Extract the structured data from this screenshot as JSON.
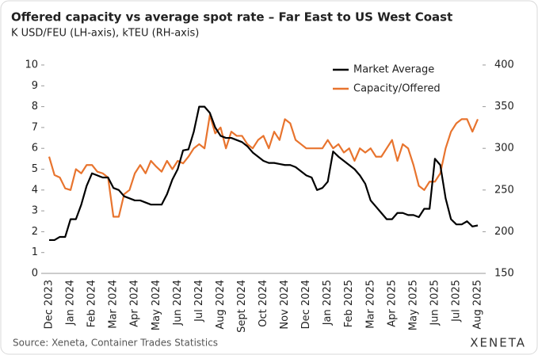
{
  "chart_data": {
    "type": "line",
    "title": "Offered capacity vs average spot rate – Far East to US West Coast",
    "subtitle": "K USD/FEU (LH-axis), kTEU (RH-axis)",
    "categories": [
      "Dec 2023",
      null,
      null,
      null,
      "Jan 2024",
      null,
      null,
      null,
      "Feb 2024",
      null,
      null,
      null,
      "Mar 2024",
      null,
      null,
      null,
      "Apr 2024",
      null,
      null,
      null,
      "May 2024",
      null,
      null,
      null,
      "Jun 2024",
      null,
      null,
      null,
      "Jul 2024",
      null,
      null,
      null,
      "Aug 2024",
      null,
      null,
      null,
      "Sept 2024",
      null,
      null,
      null,
      "Oct 2024",
      null,
      null,
      null,
      "Nov 2024",
      null,
      null,
      null,
      "Dec 2024",
      null,
      null,
      null,
      "Jan 2025",
      null,
      null,
      null,
      "Feb 2025",
      null,
      null,
      null,
      "Mar 2025",
      null,
      null,
      null,
      "Apr 2025",
      null,
      null,
      null,
      "May 2025",
      null,
      null,
      null,
      "Jun 2025",
      null,
      null,
      null,
      "Jul 2025",
      null,
      null,
      null,
      "Aug 2025"
    ],
    "series": [
      {
        "name": "Market Average",
        "color": "#000000",
        "values": [
          1.6,
          1.6,
          1.75,
          1.75,
          2.6,
          2.6,
          3.3,
          4.2,
          4.8,
          4.7,
          4.6,
          4.6,
          4.1,
          4.0,
          3.7,
          3.6,
          3.5,
          3.5,
          3.4,
          3.3,
          3.3,
          3.3,
          3.8,
          4.5,
          5.0,
          5.9,
          5.95,
          6.8,
          8.0,
          8.0,
          7.7,
          7.0,
          6.6,
          6.5,
          6.5,
          6.4,
          6.3,
          6.1,
          5.8,
          5.6,
          5.4,
          5.3,
          5.3,
          5.25,
          5.2,
          5.2,
          5.1,
          4.9,
          4.7,
          4.6,
          4.0,
          4.1,
          4.4,
          5.85,
          5.6,
          5.4,
          5.2,
          5.0,
          4.7,
          4.3,
          3.5,
          3.2,
          2.9,
          2.6,
          2.6,
          2.9,
          2.9,
          2.8,
          2.8,
          2.7,
          3.1,
          3.1,
          5.5,
          5.2,
          3.6,
          2.6,
          2.35,
          2.35,
          2.5,
          2.25,
          2.3
        ]
      },
      {
        "name": "Capacity/Offered",
        "color": "#e8742e",
        "axis": "y2",
        "values": [
          290,
          268,
          265,
          252,
          250,
          275,
          270,
          280,
          280,
          272,
          270,
          265,
          218,
          218,
          245,
          250,
          270,
          280,
          270,
          285,
          278,
          272,
          285,
          275,
          285,
          282,
          290,
          300,
          305,
          300,
          340,
          318,
          325,
          300,
          320,
          315,
          315,
          305,
          300,
          310,
          315,
          300,
          320,
          310,
          335,
          330,
          310,
          305,
          300,
          300,
          300,
          300,
          310,
          300,
          305,
          295,
          300,
          285,
          300,
          295,
          300,
          290,
          290,
          300,
          310,
          285,
          305,
          300,
          280,
          255,
          250,
          260,
          260,
          270,
          300,
          320,
          330,
          335,
          335,
          320,
          335
        ]
      }
    ],
    "ylim": [
      0,
      10
    ],
    "yticks": [
      0,
      1,
      2,
      3,
      4,
      5,
      6,
      7,
      8,
      9,
      10
    ],
    "y2lim": [
      150,
      400
    ],
    "y2ticks": [
      150,
      200,
      250,
      300,
      350,
      400
    ],
    "legend": "upper right"
  },
  "footer": {
    "source": "Source: Xeneta, Container Trades Statistics",
    "brand": "XENETA"
  }
}
